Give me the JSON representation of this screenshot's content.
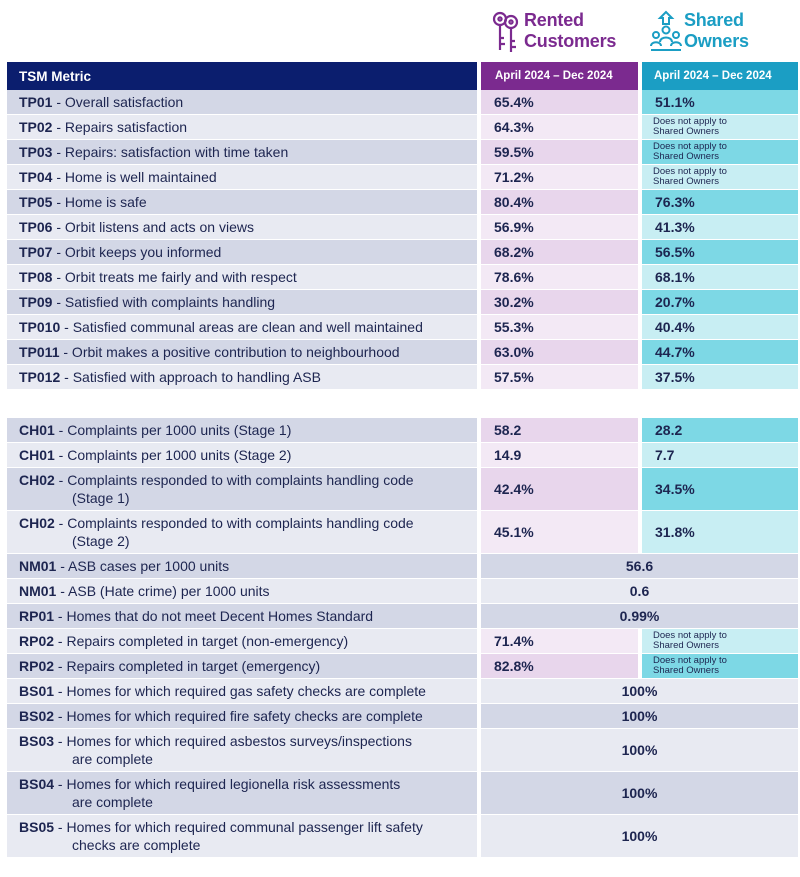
{
  "header": {
    "rented_title_line1": "Rented",
    "rented_title_line2": "Customers",
    "shared_title_line1": "Shared",
    "shared_title_line2": "Owners",
    "metric_column": "TSM Metric",
    "rented_period": "April 2024 – Dec 2024",
    "shared_period": "April 2024 – Dec 2024",
    "rented_icon": "keys-icon",
    "shared_icon": "people-icon",
    "colors": {
      "navy": "#0b1e6e",
      "purple": "#7b2a8f",
      "teal": "#1b9ec4"
    }
  },
  "tp_rows": [
    {
      "code": "TP01",
      "label": " - Overall satisfaction",
      "rented": "65.4%",
      "shared": "51.1%"
    },
    {
      "code": "TP02",
      "label": " - Repairs satisfaction",
      "rented": "64.3%",
      "shared_note_1": "Does not apply to",
      "shared_note_2": "Shared Owners"
    },
    {
      "code": "TP03",
      "label": " - Repairs: satisfaction with time taken",
      "rented": "59.5%",
      "shared_note_1": "Does not apply to",
      "shared_note_2": "Shared Owners"
    },
    {
      "code": "TP04",
      "label": " - Home is well maintained",
      "rented": "71.2%",
      "shared_note_1": "Does not apply to",
      "shared_note_2": "Shared Owners"
    },
    {
      "code": "TP05",
      "label": " - Home is safe",
      "rented": "80.4%",
      "shared": "76.3%"
    },
    {
      "code": "TP06",
      "label": " - Orbit listens and acts on views",
      "rented": "56.9%",
      "shared": "41.3%"
    },
    {
      "code": "TP07",
      "label": " - Orbit keeps you informed",
      "rented": "68.2%",
      "shared": "56.5%"
    },
    {
      "code": "TP08",
      "label": " - Orbit treats me fairly and with respect",
      "rented": "78.6%",
      "shared": "68.1%"
    },
    {
      "code": "TP09",
      "label": " - Satisfied with complaints handling",
      "rented": "30.2%",
      "shared": "20.7%"
    },
    {
      "code": "TP010",
      "label": " - Satisfied communal areas are clean and well maintained",
      "rented": "55.3%",
      "shared": "40.4%"
    },
    {
      "code": "TP011",
      "label": " - Orbit makes a positive contribution to neighbourhood",
      "rented": "63.0%",
      "shared": "44.7%"
    },
    {
      "code": "TP012",
      "label": " - Satisfied with approach to handling ASB",
      "rented": "57.5%",
      "shared": "37.5%"
    }
  ],
  "other_rows": [
    {
      "code": "CH01",
      "label": " - Complaints per 1000 units (Stage 1)",
      "rented": "58.2",
      "shared": "28.2"
    },
    {
      "code": "CH01",
      "label": " - Complaints per 1000 units (Stage 2)",
      "rented": "14.9",
      "shared": "7.7"
    },
    {
      "code": "CH02",
      "label": " - Complaints responded to with complaints handling code",
      "label2": "(Stage 1)",
      "rented": "42.4%",
      "shared": "34.5%"
    },
    {
      "code": "CH02",
      "label": " - Complaints responded to with complaints handling code",
      "label2": "(Stage 2)",
      "rented": "45.1%",
      "shared": "31.8%"
    },
    {
      "code": "NM01",
      "label": " - ASB cases per 1000 units",
      "combined": "56.6"
    },
    {
      "code": "NM01",
      "label": " - ASB (Hate crime) per 1000 units",
      "combined": "0.6"
    },
    {
      "code": "RP01",
      "label": " - Homes that do not meet Decent Homes Standard",
      "combined": "0.99%"
    },
    {
      "code": "RP02",
      "label": " - Repairs completed in target (non-emergency)",
      "rented": "71.4%",
      "shared_note_1": "Does not apply to",
      "shared_note_2": "Shared Owners"
    },
    {
      "code": "RP02",
      "label": " - Repairs completed in target (emergency)",
      "rented": "82.8%",
      "shared_note_1": "Does not apply to",
      "shared_note_2": "Shared Owners"
    },
    {
      "code": "BS01",
      "label": " - Homes for which required gas safety checks are complete",
      "combined": "100%"
    },
    {
      "code": "BS02",
      "label": " - Homes for which required fire safety checks are complete",
      "combined": "100%"
    },
    {
      "code": "BS03",
      "label": " - Homes for which required asbestos surveys/inspections",
      "label2": "are complete",
      "combined": "100%"
    },
    {
      "code": "BS04",
      "label": " - Homes for which required legionella risk assessments",
      "label2": "are complete",
      "combined": "100%"
    },
    {
      "code": "BS05",
      "label": " - Homes for which required communal passenger lift safety",
      "label2": "checks are complete",
      "combined": "100%"
    }
  ]
}
